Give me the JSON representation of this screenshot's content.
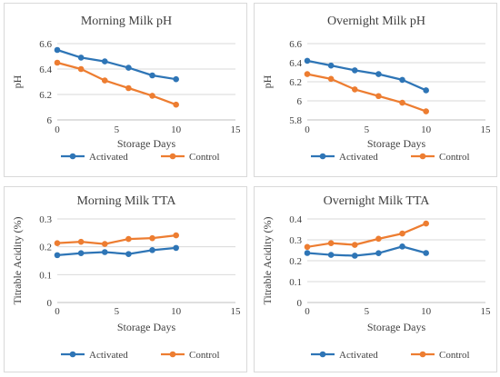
{
  "chart_data": [
    {
      "type": "line",
      "title": "Morning Milk pH",
      "xlabel": "Storage Days",
      "ylabel": "pH",
      "xlim": [
        0,
        15
      ],
      "xticks": [
        0,
        5,
        10,
        15
      ],
      "ylim": [
        6,
        6.6
      ],
      "yticks": [
        6,
        6.2,
        6.4,
        6.6
      ],
      "ytick_labels": [
        "6",
        "6.2",
        "6.4",
        "6.6"
      ],
      "grid": "horizontal",
      "legend": "bottom",
      "x": [
        0,
        2,
        4,
        6,
        8,
        10
      ],
      "series": [
        {
          "name": "Activated",
          "color": "#2e75b6",
          "values": [
            6.55,
            6.49,
            6.46,
            6.41,
            6.35,
            6.32
          ]
        },
        {
          "name": "Control",
          "color": "#ed7d31",
          "values": [
            6.45,
            6.4,
            6.31,
            6.25,
            6.19,
            6.12
          ]
        }
      ]
    },
    {
      "type": "line",
      "title": "Overnight Milk pH",
      "xlabel": "Storage Days",
      "ylabel": "pH",
      "xlim": [
        0,
        15
      ],
      "xticks": [
        0,
        5,
        10,
        15
      ],
      "ylim": [
        5.8,
        6.6
      ],
      "yticks": [
        5.8,
        6,
        6.2,
        6.4,
        6.6
      ],
      "ytick_labels": [
        "5.8",
        "6",
        "6.2",
        "6.4",
        "6.6"
      ],
      "grid": "horizontal",
      "legend": "bottom",
      "x": [
        0,
        2,
        4,
        6,
        8,
        10
      ],
      "series": [
        {
          "name": "Activated",
          "color": "#2e75b6",
          "values": [
            6.42,
            6.37,
            6.32,
            6.28,
            6.22,
            6.11
          ]
        },
        {
          "name": "Control",
          "color": "#ed7d31",
          "values": [
            6.28,
            6.23,
            6.12,
            6.05,
            5.98,
            5.89
          ]
        }
      ]
    },
    {
      "type": "line",
      "title": "Morning Milk TTA",
      "xlabel": "Storage Days",
      "ylabel": "Titrable Acidity (%)",
      "xlim": [
        0,
        15
      ],
      "xticks": [
        0,
        5,
        10,
        15
      ],
      "ylim": [
        0,
        0.3
      ],
      "yticks": [
        0,
        0.1,
        0.2,
        0.3
      ],
      "ytick_labels": [
        "0",
        "0.1",
        "0.2",
        "0.3"
      ],
      "grid": "horizontal",
      "legend": "bottom",
      "x": [
        0,
        2,
        4,
        6,
        8,
        10
      ],
      "series": [
        {
          "name": "Activated",
          "color": "#2e75b6",
          "values": [
            0.17,
            0.177,
            0.181,
            0.174,
            0.188,
            0.196
          ]
        },
        {
          "name": "Control",
          "color": "#ed7d31",
          "values": [
            0.213,
            0.218,
            0.21,
            0.228,
            0.231,
            0.241
          ]
        }
      ]
    },
    {
      "type": "line",
      "title": "Overnight Milk TTA",
      "xlabel": "Storage Days",
      "ylabel": "Titrable Acidity (%)",
      "xlim": [
        0,
        15
      ],
      "xticks": [
        0,
        5,
        10,
        15
      ],
      "ylim": [
        0,
        0.4
      ],
      "yticks": [
        0,
        0.1,
        0.2,
        0.3,
        0.4
      ],
      "ytick_labels": [
        "0",
        "0.1",
        "0.2",
        "0.3",
        "0.4"
      ],
      "grid": "horizontal",
      "legend": "bottom",
      "x": [
        0,
        2,
        4,
        6,
        8,
        10
      ],
      "series": [
        {
          "name": "Activated",
          "color": "#2e75b6",
          "values": [
            0.237,
            0.228,
            0.224,
            0.236,
            0.268,
            0.237
          ]
        },
        {
          "name": "Control",
          "color": "#ed7d31",
          "values": [
            0.266,
            0.284,
            0.276,
            0.305,
            0.33,
            0.378
          ]
        }
      ]
    }
  ]
}
